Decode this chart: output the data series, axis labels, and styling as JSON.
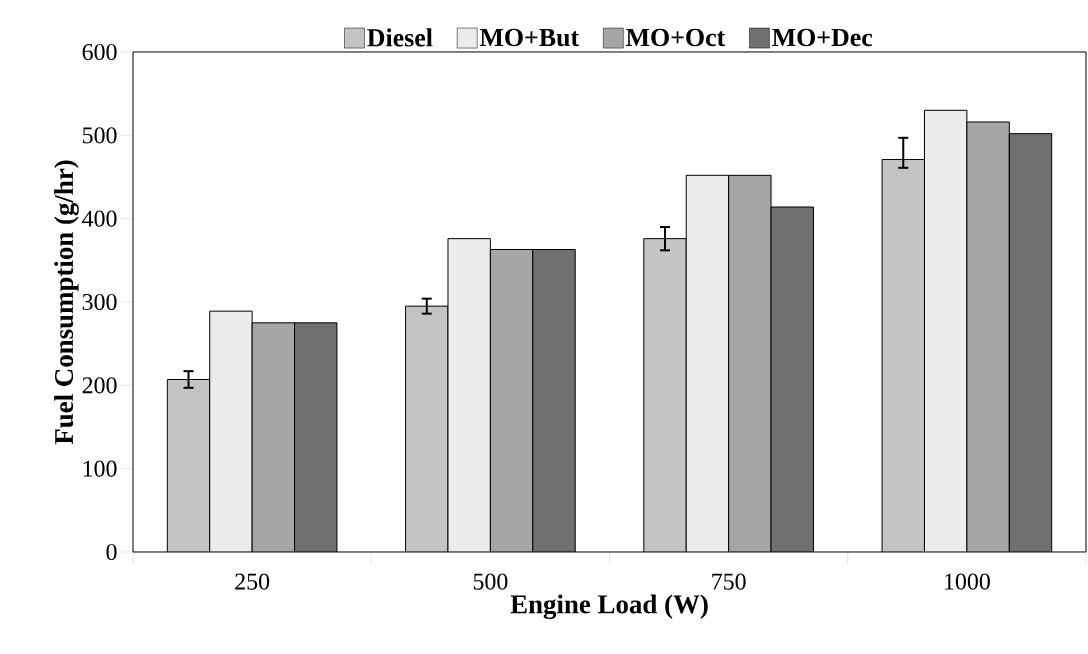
{
  "chart_data": {
    "type": "bar",
    "xlabel": "Engine Load (W)",
    "ylabel": "Fuel Consumption (g/hr)",
    "categories": [
      "250",
      "500",
      "750",
      "1000"
    ],
    "series": [
      {
        "name": "Diesel",
        "color": "#c4c4c4",
        "values": [
          207,
          295,
          376,
          471
        ],
        "errors": [
          10,
          9,
          14,
          [
            461,
            497
          ]
        ]
      },
      {
        "name": "MO+But",
        "color": "#ececec",
        "values": [
          289,
          376,
          452,
          530
        ]
      },
      {
        "name": "MO+Oct",
        "color": "#a6a6a6",
        "values": [
          275,
          363,
          452,
          516
        ]
      },
      {
        "name": "MO+Dec",
        "color": "#707070",
        "values": [
          275,
          363,
          414,
          502
        ]
      }
    ],
    "ylim": [
      0,
      600
    ],
    "yticks": [
      0,
      100,
      200,
      300,
      400,
      500,
      600
    ],
    "legend": "top",
    "grid": false
  }
}
